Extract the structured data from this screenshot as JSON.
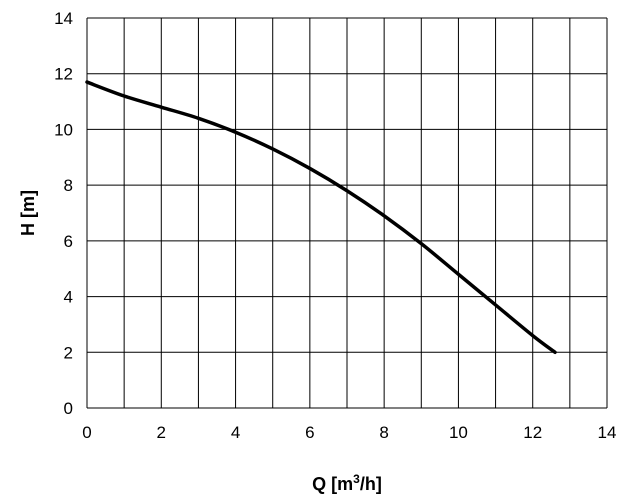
{
  "chart_data": {
    "type": "line",
    "title": "",
    "xlabel": "Q [m³/h]",
    "xlabel_parts": {
      "pre": "Q [m",
      "sup": "3",
      "post": "/h]"
    },
    "ylabel": "H [m]",
    "xlim": [
      0,
      14
    ],
    "ylim": [
      0,
      14
    ],
    "xticks": [
      0,
      2,
      4,
      6,
      8,
      10,
      12,
      14
    ],
    "yticks": [
      0,
      2,
      4,
      6,
      8,
      10,
      12,
      14
    ],
    "grid_x": [
      0,
      1,
      2,
      3,
      4,
      5,
      6,
      7,
      8,
      9,
      10,
      11,
      12,
      13,
      14
    ],
    "grid_y": [
      0,
      2,
      4,
      6,
      8,
      10,
      12,
      14
    ],
    "grid": true,
    "legend": "none",
    "series": [
      {
        "x": [
          0,
          1,
          2,
          3,
          4,
          5,
          6,
          7,
          8,
          9,
          10,
          11,
          12,
          12.6
        ],
        "y": [
          11.7,
          11.2,
          10.8,
          10.4,
          9.9,
          9.3,
          8.6,
          7.8,
          6.9,
          5.9,
          4.8,
          3.7,
          2.6,
          2.0
        ],
        "color": "#000000"
      }
    ]
  }
}
